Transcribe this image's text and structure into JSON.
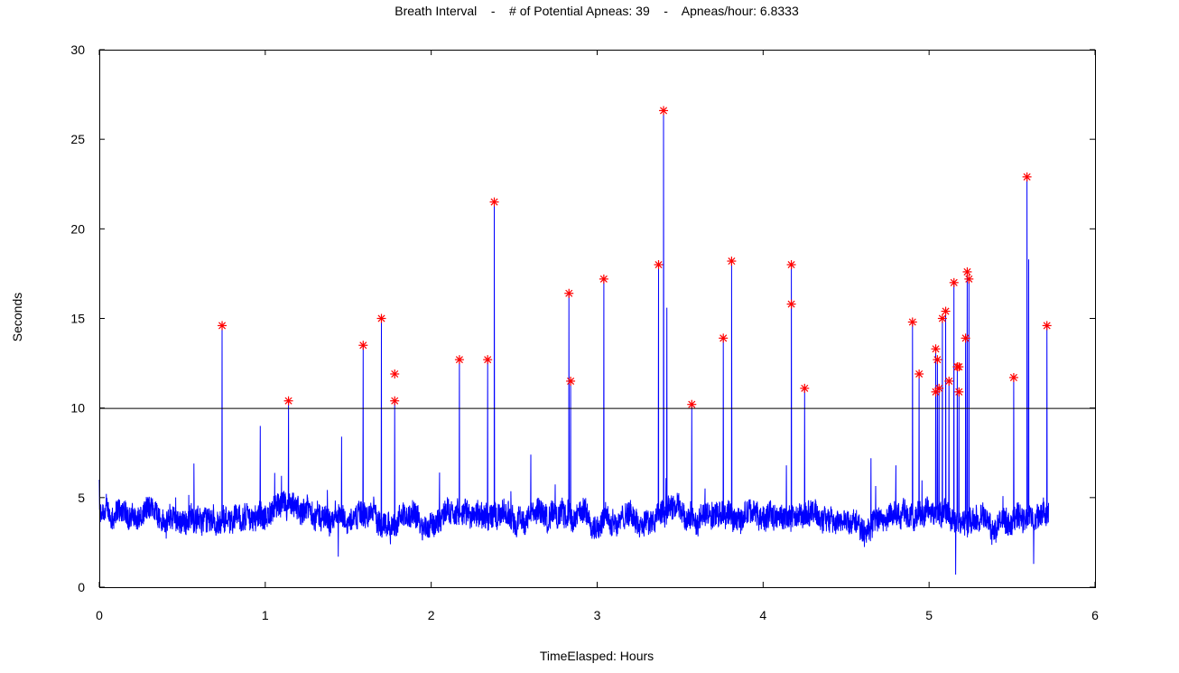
{
  "chart_data": {
    "type": "line",
    "title": "Breath Interval    -    # of Potential Apneas: 39    -    Apneas/hour: 6.8333",
    "xlabel": "TimeElasped: Hours",
    "ylabel": "Seconds",
    "xlim": [
      0,
      6
    ],
    "ylim": [
      0,
      30
    ],
    "xticks": [
      "0",
      "1",
      "2",
      "3",
      "4",
      "5",
      "6"
    ],
    "yticks": [
      "0",
      "5",
      "10",
      "15",
      "20",
      "25",
      "30"
    ],
    "grid": false,
    "threshold": 10,
    "colors": {
      "trace": "#0000ff",
      "markers": "#ff0000",
      "threshold": "#000000"
    },
    "series": [
      {
        "kind": "breath-interval-trace",
        "baseline_seconds": 3.9,
        "end_hours": 5.72,
        "other_spikes": [
          [
            0.0,
            6.0
          ],
          [
            0.57,
            6.9
          ],
          [
            0.97,
            9.0
          ],
          [
            1.44,
            1.7
          ],
          [
            1.46,
            8.4
          ],
          [
            2.05,
            6.4
          ],
          [
            2.6,
            7.4
          ],
          [
            3.42,
            15.6
          ],
          [
            4.14,
            6.8
          ],
          [
            4.65,
            7.2
          ],
          [
            4.8,
            6.8
          ],
          [
            5.6,
            18.3
          ],
          [
            5.16,
            0.7
          ],
          [
            5.63,
            1.3
          ]
        ]
      },
      {
        "kind": "potential-apnea-markers",
        "points": [
          [
            0.74,
            14.6
          ],
          [
            1.14,
            10.4
          ],
          [
            1.59,
            13.5
          ],
          [
            1.7,
            15.0
          ],
          [
            1.78,
            11.9
          ],
          [
            1.78,
            10.4
          ],
          [
            2.17,
            12.7
          ],
          [
            2.34,
            12.7
          ],
          [
            2.38,
            21.5
          ],
          [
            2.83,
            16.4
          ],
          [
            2.84,
            11.5
          ],
          [
            3.04,
            17.2
          ],
          [
            3.37,
            18.0
          ],
          [
            3.4,
            26.6
          ],
          [
            3.57,
            10.2
          ],
          [
            3.76,
            13.9
          ],
          [
            3.81,
            18.2
          ],
          [
            4.17,
            15.8
          ],
          [
            4.17,
            18.0
          ],
          [
            4.25,
            11.1
          ],
          [
            4.9,
            14.8
          ],
          [
            4.94,
            11.9
          ],
          [
            5.04,
            10.9
          ],
          [
            5.04,
            13.3
          ],
          [
            5.05,
            12.7
          ],
          [
            5.06,
            11.1
          ],
          [
            5.08,
            15.0
          ],
          [
            5.1,
            15.4
          ],
          [
            5.12,
            11.5
          ],
          [
            5.15,
            17.0
          ],
          [
            5.17,
            12.3
          ],
          [
            5.18,
            12.3
          ],
          [
            5.18,
            10.9
          ],
          [
            5.22,
            13.9
          ],
          [
            5.23,
            17.6
          ],
          [
            5.24,
            17.2
          ],
          [
            5.51,
            11.7
          ],
          [
            5.59,
            22.9
          ],
          [
            5.71,
            14.6
          ]
        ]
      }
    ]
  }
}
